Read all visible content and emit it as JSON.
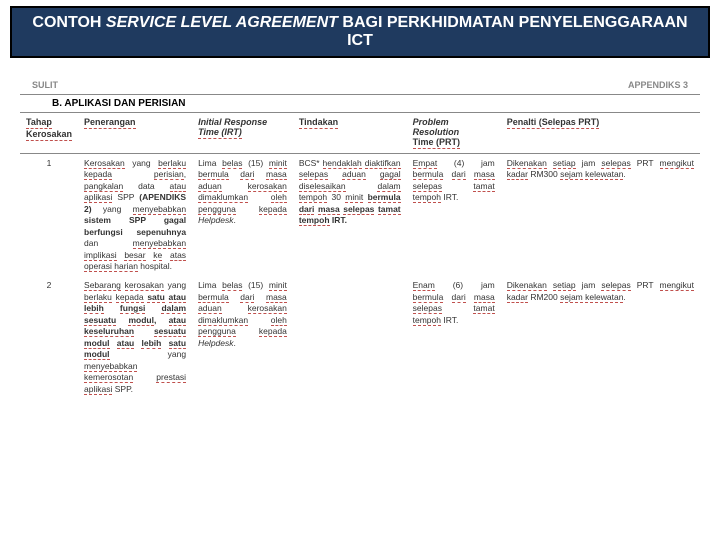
{
  "title": {
    "prefix": "CONTOH ",
    "italic": "SERVICE LEVEL AGREEMENT",
    "suffix": " BAGI PERKHIDMATAN PENYELENGGARAAN ICT"
  },
  "doc": {
    "left": "SULIT",
    "right": "APPENDIKS 3"
  },
  "section": "B. APLIKASI DAN PERISIAN",
  "columns": {
    "tahap1": "Tahap",
    "tahap2": "Kerosakan",
    "penerangan": "Penerangan",
    "irt_it": "Initial Response",
    "irt2": "Time (IRT)",
    "tindakan": "Tindakan",
    "prt_it1": "Problem",
    "prt_it2": "Resolution",
    "prt3": "Time (PRT)",
    "penalti": "Penalti (Selepas PRT)"
  },
  "rows": [
    {
      "n": "1",
      "pen": "Kerosakan yang berlaku kepada perisian, pangkalan data atau aplikasi SPP (APENDIKS 2) yang menyebabkan sistem SPP gagal berfungsi sepenuhnya dan menyebabkan implikasi besar ke atas operasi harian hospital.",
      "irt": "Lima belas (15) minit bermula dari masa aduan kerosakan dimaklumkan oleh pengguna kepada Helpdesk.",
      "tind": "BCS* hendaklah diaktifkan selepas aduan gagal diselesaikan dalam tempoh 30 minit bermula dari masa selepas tamat tempoh IRT.",
      "prt": "Empat (4) jam bermula dari masa selepas tamat tempoh IRT.",
      "penalti": "Dikenakan setiap jam selepas PRT mengikut kadar RM300 sejam kelewatan."
    },
    {
      "n": "2",
      "pen": "Sebarang kerosakan yang berlaku kepada satu atau lebih fungsi dalam sesuatu modul, atau keseluruhan sesuatu modul atau lebih satu modul yang menyebabkan kemerosotan prestasi aplikasi SPP.",
      "irt": "Lima belas (15) minit bermula dari masa aduan kerosakan dimaklumkan oleh pengguna kepada Helpdesk.",
      "tind": "",
      "prt": "Enam (6) jam bermula dari masa selepas tamat tempoh IRT.",
      "penalti": "Dikenakan setiap jam selepas PRT mengikut kadar RM200 sejam kelewatan."
    }
  ]
}
